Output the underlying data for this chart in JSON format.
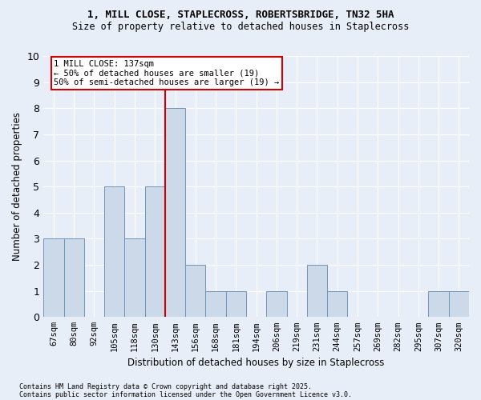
{
  "title_line1": "1, MILL CLOSE, STAPLECROSS, ROBERTSBRIDGE, TN32 5HA",
  "title_line2": "Size of property relative to detached houses in Staplecross",
  "xlabel": "Distribution of detached houses by size in Staplecross",
  "ylabel": "Number of detached properties",
  "footer_line1": "Contains HM Land Registry data © Crown copyright and database right 2025.",
  "footer_line2": "Contains public sector information licensed under the Open Government Licence v3.0.",
  "annotation_line1": "1 MILL CLOSE: 137sqm",
  "annotation_line2": "← 50% of detached houses are smaller (19)",
  "annotation_line3": "50% of semi-detached houses are larger (19) →",
  "bin_labels": [
    "67sqm",
    "80sqm",
    "92sqm",
    "105sqm",
    "118sqm",
    "130sqm",
    "143sqm",
    "156sqm",
    "168sqm",
    "181sqm",
    "194sqm",
    "206sqm",
    "219sqm",
    "231sqm",
    "244sqm",
    "257sqm",
    "269sqm",
    "282sqm",
    "295sqm",
    "307sqm",
    "320sqm"
  ],
  "bar_heights": [
    3,
    3,
    0,
    5,
    3,
    5,
    8,
    2,
    1,
    1,
    0,
    1,
    0,
    2,
    1,
    0,
    0,
    0,
    0,
    1,
    1
  ],
  "bar_color": "#ccd9e8",
  "bar_edgecolor": "#7094b8",
  "vline_x_index": 6,
  "vline_color": "#cc0000",
  "ylim": [
    0,
    10
  ],
  "yticks": [
    0,
    1,
    2,
    3,
    4,
    5,
    6,
    7,
    8,
    9,
    10
  ],
  "bg_color": "#e8eef8",
  "plot_bg_color": "#e8eef8",
  "annotation_box_facecolor": "#ffffff",
  "annotation_box_edgecolor": "#cc0000",
  "grid_color": "#ffffff"
}
